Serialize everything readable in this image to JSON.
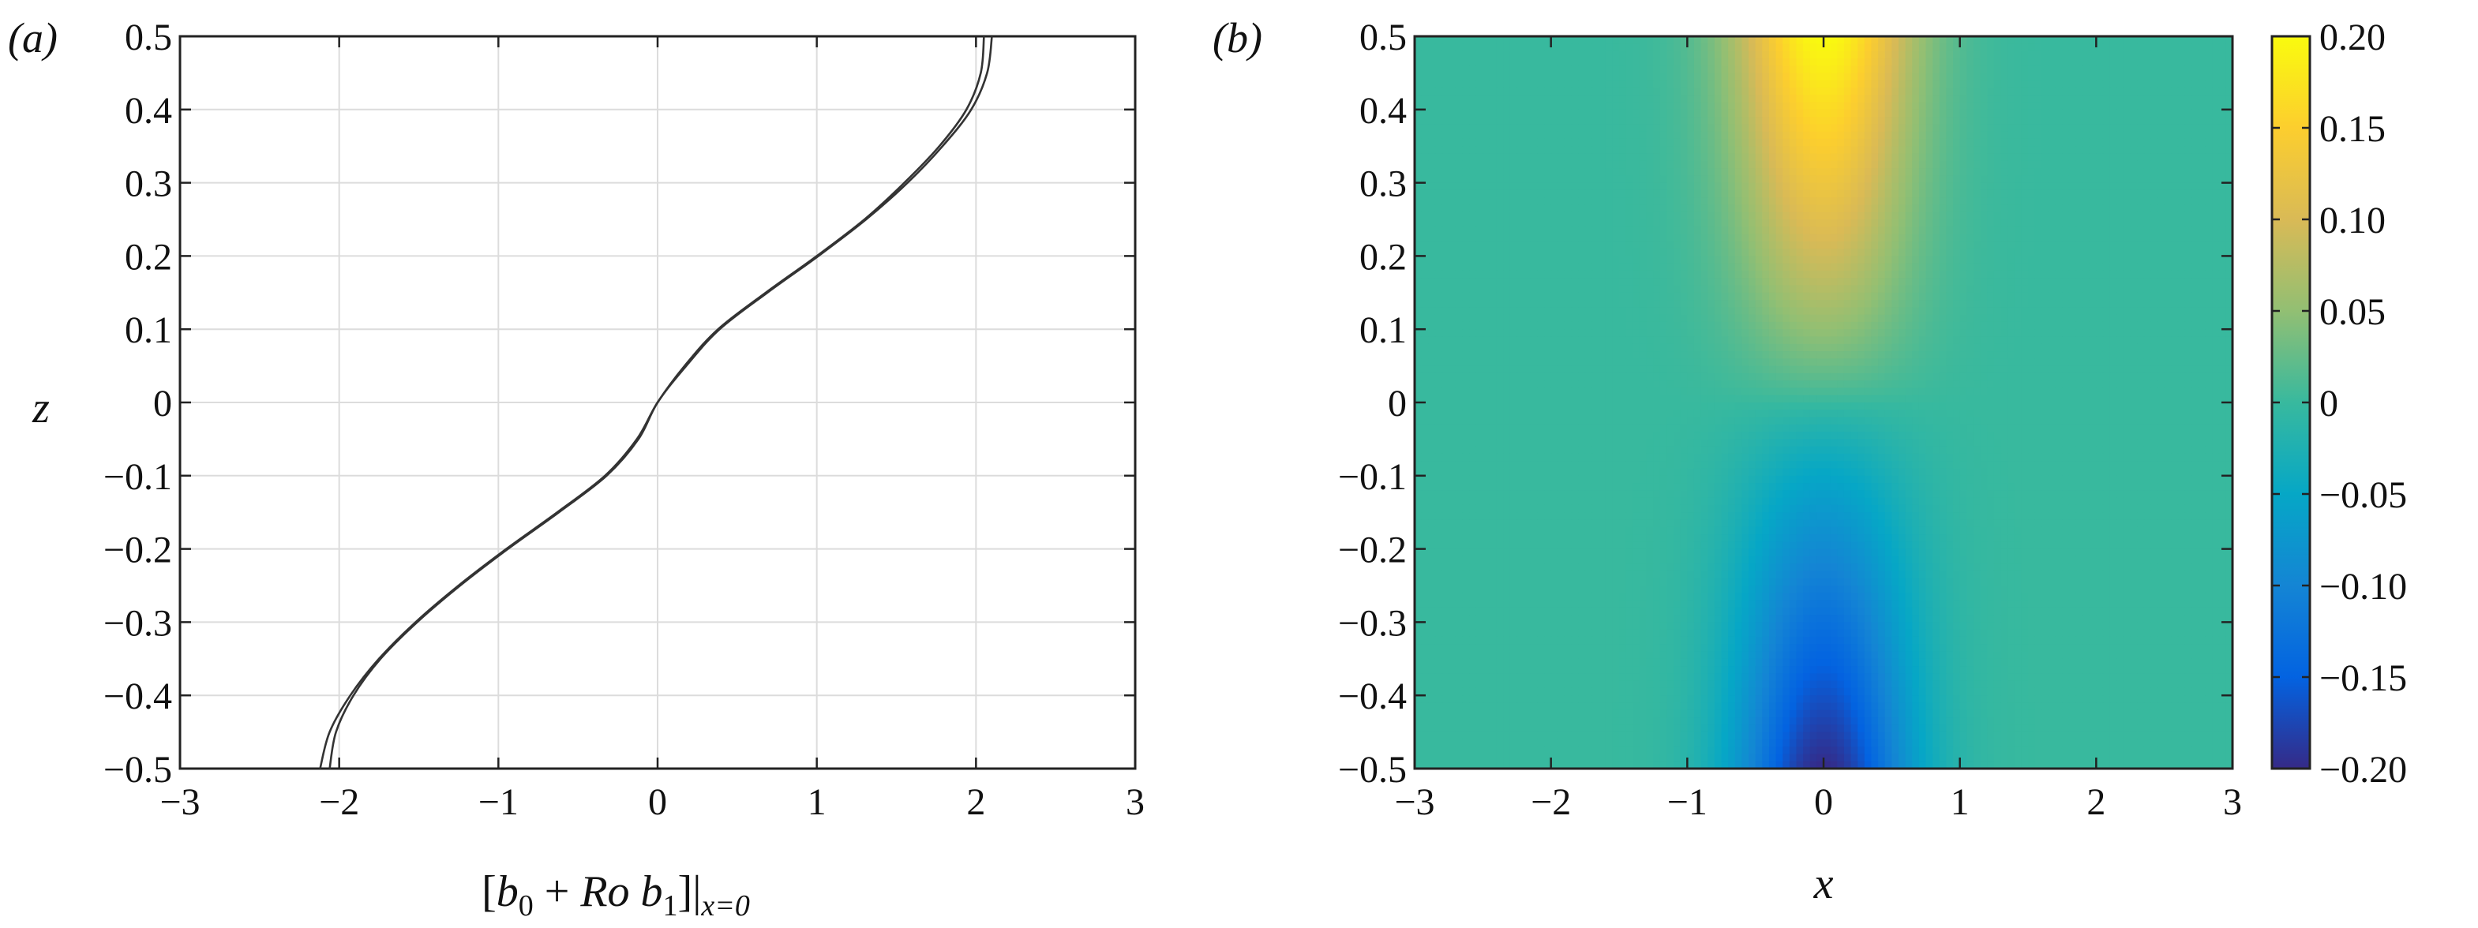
{
  "chart_data": [
    {
      "type": "line",
      "panel_label": "(a)",
      "xlabel": {
        "open": "[",
        "b": "b",
        "sub0": "0",
        "plus": " + ",
        "ro": "Ro",
        "sp": " ",
        "b1": "b",
        "sub1": "1",
        "close": "]|",
        "subx": "x=0"
      },
      "ylabel": "z",
      "xlim": [
        -3,
        3
      ],
      "ylim": [
        -0.5,
        0.5
      ],
      "xticks": [
        "−3",
        "−2",
        "−1",
        "0",
        "1",
        "2",
        "3"
      ],
      "yticks": [
        "−0.5",
        "−0.4",
        "−0.3",
        "−0.2",
        "−0.1",
        "0",
        "0.1",
        "0.2",
        "0.3",
        "0.4",
        "0.5"
      ],
      "grid": true,
      "series": [
        {
          "z": [
            -0.5,
            -0.45,
            -0.4,
            -0.35,
            -0.3,
            -0.25,
            -0.2,
            -0.15,
            -0.1,
            -0.05,
            0,
            0.05,
            0.1,
            0.15,
            0.2,
            0.25,
            0.3,
            0.35,
            0.4,
            0.45,
            0.5
          ],
          "x": [
            -2.12,
            -2.06,
            -1.93,
            -1.75,
            -1.52,
            -1.25,
            -0.95,
            -0.63,
            -0.33,
            -0.13,
            0,
            0.17,
            0.38,
            0.68,
            1.0,
            1.3,
            1.55,
            1.77,
            1.94,
            2.03,
            2.05
          ]
        },
        {
          "z": [
            -0.5,
            -0.45,
            -0.4,
            -0.35,
            -0.3,
            -0.25,
            -0.2,
            -0.15,
            -0.1,
            -0.05,
            0,
            0.05,
            0.1,
            0.15,
            0.2,
            0.25,
            0.3,
            0.35,
            0.4,
            0.45,
            0.5
          ],
          "x": [
            -2.06,
            -2.02,
            -1.91,
            -1.74,
            -1.51,
            -1.24,
            -0.94,
            -0.62,
            -0.32,
            -0.12,
            0,
            0.18,
            0.39,
            0.69,
            1.01,
            1.31,
            1.57,
            1.79,
            1.97,
            2.07,
            2.1
          ]
        }
      ]
    },
    {
      "type": "heatmap",
      "panel_label": "(b)",
      "xlabel": "x",
      "ylabel": "",
      "xlim": [
        -3,
        3
      ],
      "ylim": [
        -0.5,
        0.5
      ],
      "xticks": [
        "−3",
        "−2",
        "−1",
        "0",
        "1",
        "2",
        "3"
      ],
      "yticks": [
        "−0.5",
        "−0.4",
        "−0.3",
        "−0.2",
        "−0.1",
        "0",
        "0.1",
        "0.2",
        "0.3",
        "0.4",
        "0.5"
      ],
      "colorbar": {
        "range": [
          -0.2,
          0.2
        ],
        "ticks": [
          "−0.20",
          "−0.15",
          "−0.10",
          "−0.05",
          "0",
          "0.05",
          "0.10",
          "0.15",
          "0.20"
        ],
        "colormap": "parula"
      },
      "field": {
        "peak_positive": 0.2,
        "peak_negative": -0.2,
        "peak_location_positive": [
          0,
          0.5
        ],
        "peak_location_negative": [
          0,
          -0.5
        ]
      }
    }
  ]
}
